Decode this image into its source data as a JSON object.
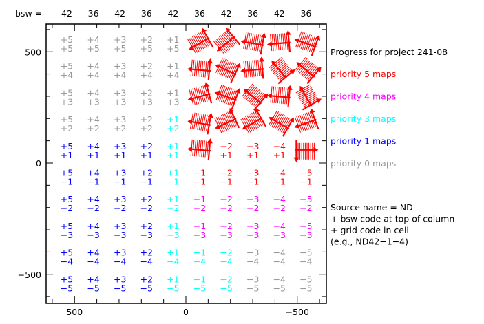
{
  "chart_data": {
    "type": "grid-map",
    "title": "Progress for project 241-08",
    "header_label": "bsw =",
    "bsw_codes": [
      "42",
      "36",
      "42",
      "36",
      "42",
      "36",
      "42",
      "36",
      "42",
      "36"
    ],
    "column_codes": [
      "+5",
      "+4",
      "+3",
      "+2",
      "+1",
      "−1",
      "−2",
      "−3",
      "−4",
      "−5"
    ],
    "row_codes": [
      "+5",
      "+4",
      "+3",
      "+2",
      "+1",
      "−1",
      "−2",
      "−3",
      "−4",
      "−5"
    ],
    "x_ticks": [
      "500",
      "0",
      "−500"
    ],
    "y_ticks": [
      "500",
      "0",
      "−500"
    ],
    "xlim": [
      630,
      -630
    ],
    "ylim": [
      -630,
      630
    ],
    "priority_colors": {
      "5": "#ff0000",
      "4": "#ff00ff",
      "3": "#00ffff",
      "1": "#0000ff",
      "0": "#999999"
    },
    "cell_priority": [
      [
        0,
        0,
        0,
        0,
        0,
        "D",
        "D",
        "D",
        "D",
        "D"
      ],
      [
        0,
        0,
        0,
        0,
        0,
        "D",
        "D",
        "D",
        "D",
        "D"
      ],
      [
        0,
        0,
        0,
        0,
        0,
        "D",
        "D",
        "D",
        "D",
        "D"
      ],
      [
        0,
        0,
        0,
        0,
        3,
        "D",
        "D",
        "D",
        "D",
        "D"
      ],
      [
        1,
        1,
        1,
        1,
        3,
        "D",
        5,
        5,
        5,
        "D"
      ],
      [
        1,
        1,
        1,
        1,
        3,
        5,
        5,
        5,
        5,
        5
      ],
      [
        1,
        1,
        1,
        1,
        3,
        4,
        4,
        4,
        4,
        4
      ],
      [
        1,
        1,
        1,
        1,
        3,
        4,
        4,
        4,
        4,
        4
      ],
      [
        1,
        1,
        1,
        1,
        3,
        3,
        3,
        0,
        0,
        0
      ],
      [
        1,
        1,
        1,
        1,
        3,
        3,
        3,
        0,
        0,
        0
      ]
    ],
    "legend": [
      {
        "label": "priority 5 maps",
        "color": "#ff0000"
      },
      {
        "label": "priority 4 maps",
        "color": "#ff00ff"
      },
      {
        "label": "priority 3 maps",
        "color": "#00ffff"
      },
      {
        "label": "priority 1 maps",
        "color": "#0000ff"
      },
      {
        "label": "priority 0 maps",
        "color": "#999999"
      }
    ],
    "notes": [
      "Source name = ND",
      " + bsw code at top of column",
      " + grid code in cell",
      "(e.g., ND42+1−4)"
    ]
  }
}
